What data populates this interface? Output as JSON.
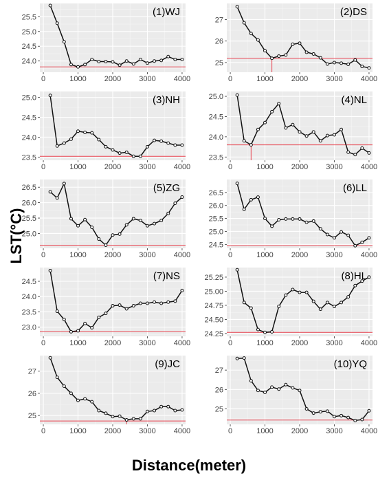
{
  "axis_label_y": "LST(°C)",
  "axis_label_x": "Distance(meter)",
  "chart_data": [
    {
      "type": "line",
      "title": "(1)WJ",
      "x": [
        200,
        400,
        600,
        800,
        1000,
        1200,
        1400,
        1600,
        1800,
        2000,
        2200,
        2400,
        2600,
        2800,
        3000,
        3200,
        3400,
        3600,
        3800,
        4000
      ],
      "values": [
        25.88,
        25.28,
        24.65,
        23.88,
        23.8,
        23.88,
        24.05,
        23.98,
        23.98,
        23.97,
        23.86,
        24.0,
        23.9,
        24.05,
        23.93,
        24.0,
        24.02,
        24.15,
        24.05,
        24.05
      ],
      "ylim": [
        23.62,
        25.95
      ],
      "yticks": [
        24.0,
        24.5,
        25.0,
        25.5
      ],
      "xticks": [
        0,
        1000,
        2000,
        3000,
        4000
      ],
      "xlim": [
        -100,
        4100
      ],
      "ref_y": 23.8,
      "ref_x": null
    },
    {
      "type": "line",
      "title": "(2)DS",
      "x": [
        200,
        400,
        600,
        800,
        1000,
        1200,
        1400,
        1600,
        1800,
        2000,
        2200,
        2400,
        2600,
        2800,
        3000,
        3200,
        3400,
        3600,
        3800,
        4000
      ],
      "values": [
        27.6,
        26.85,
        26.35,
        26.05,
        25.55,
        25.2,
        25.3,
        25.35,
        25.85,
        25.9,
        25.48,
        25.4,
        25.22,
        24.93,
        25.0,
        24.97,
        24.92,
        25.12,
        24.82,
        24.75
      ],
      "ylim": [
        24.55,
        27.75
      ],
      "yticks": [
        25,
        26,
        27
      ],
      "xticks": [
        0,
        1000,
        2000,
        3000,
        4000
      ],
      "xlim": [
        -100,
        4100
      ],
      "ref_y": 25.2,
      "ref_x": 1200
    },
    {
      "type": "line",
      "title": "(3)NH",
      "x": [
        200,
        400,
        600,
        800,
        1000,
        1200,
        1400,
        1600,
        1800,
        2000,
        2200,
        2400,
        2600,
        2800,
        3000,
        3200,
        3400,
        3600,
        3800,
        4000
      ],
      "values": [
        25.05,
        23.78,
        23.85,
        23.95,
        24.15,
        24.12,
        24.11,
        23.94,
        23.76,
        23.68,
        23.6,
        23.62,
        23.52,
        23.52,
        23.76,
        23.92,
        23.9,
        23.85,
        23.8,
        23.8
      ],
      "ylim": [
        23.42,
        25.15
      ],
      "yticks": [
        23.5,
        24.0,
        24.5,
        25.0
      ],
      "xticks": [
        0,
        1000,
        2000,
        3000,
        4000
      ],
      "xlim": [
        -100,
        4100
      ],
      "ref_y": 23.52,
      "ref_x": null
    },
    {
      "type": "line",
      "title": "(4)NL",
      "x": [
        200,
        400,
        600,
        800,
        1000,
        1200,
        1400,
        1600,
        1800,
        2000,
        2200,
        2400,
        2600,
        2800,
        3000,
        3200,
        3400,
        3600,
        3800,
        4000
      ],
      "values": [
        25.03,
        23.9,
        23.8,
        24.18,
        24.35,
        24.62,
        24.82,
        24.22,
        24.3,
        24.12,
        24.02,
        24.12,
        23.9,
        24.03,
        24.05,
        24.18,
        23.62,
        23.56,
        23.72,
        23.6
      ],
      "ylim": [
        23.42,
        25.12
      ],
      "yticks": [
        23.5,
        24.0,
        24.5,
        25.0
      ],
      "xticks": [
        0,
        1000,
        2000,
        3000,
        4000
      ],
      "xlim": [
        -100,
        4100
      ],
      "ref_y": 23.8,
      "ref_x": 600
    },
    {
      "type": "line",
      "title": "(5)ZG",
      "x": [
        200,
        400,
        600,
        800,
        1000,
        1200,
        1400,
        1600,
        1800,
        2000,
        2200,
        2400,
        2600,
        2800,
        3000,
        3200,
        3400,
        3600,
        3800,
        4000
      ],
      "values": [
        26.35,
        26.15,
        26.62,
        25.48,
        25.25,
        25.45,
        25.2,
        24.82,
        24.62,
        24.95,
        24.98,
        25.28,
        25.48,
        25.42,
        25.25,
        25.32,
        25.42,
        25.65,
        25.98,
        26.18
      ],
      "ylim": [
        24.52,
        26.75
      ],
      "yticks": [
        25.0,
        25.5,
        26.0,
        26.5
      ],
      "xticks": [
        0,
        1000,
        2000,
        3000,
        4000
      ],
      "xlim": [
        -100,
        4100
      ],
      "ref_y": 24.62,
      "ref_x": null
    },
    {
      "type": "line",
      "title": "(6)LL",
      "x": [
        200,
        400,
        600,
        800,
        1000,
        1200,
        1400,
        1600,
        1800,
        2000,
        2200,
        2400,
        2600,
        2800,
        3000,
        3200,
        3400,
        3600,
        3800,
        4000
      ],
      "values": [
        26.85,
        25.85,
        26.22,
        26.32,
        25.5,
        25.2,
        25.45,
        25.48,
        25.48,
        25.48,
        25.35,
        25.4,
        25.1,
        24.88,
        24.75,
        24.98,
        24.85,
        24.45,
        24.58,
        24.75
      ],
      "ylim": [
        24.35,
        27.0
      ],
      "yticks": [
        24.5,
        25.0,
        25.5,
        26.0,
        26.5
      ],
      "xticks": [
        0,
        1000,
        2000,
        3000,
        4000
      ],
      "xlim": [
        -100,
        4100
      ],
      "ref_y": 24.45,
      "ref_x": null
    },
    {
      "type": "line",
      "title": "(7)NS",
      "x": [
        200,
        400,
        600,
        800,
        1000,
        1200,
        1400,
        1600,
        1800,
        2000,
        2200,
        2400,
        2600,
        2800,
        3000,
        3200,
        3400,
        3600,
        3800,
        4000
      ],
      "values": [
        24.85,
        23.52,
        23.25,
        22.85,
        22.88,
        23.12,
        22.98,
        23.32,
        23.45,
        23.7,
        23.72,
        23.6,
        23.7,
        23.78,
        23.78,
        23.82,
        23.78,
        23.82,
        23.85,
        24.2
      ],
      "ylim": [
        22.7,
        24.95
      ],
      "yticks": [
        23.0,
        23.5,
        24.0,
        24.5
      ],
      "xticks": [
        0,
        1000,
        2000,
        3000,
        4000
      ],
      "xlim": [
        -100,
        4100
      ],
      "ref_y": 22.85,
      "ref_x": null
    },
    {
      "type": "line",
      "title": "(8)HL",
      "x": [
        200,
        400,
        600,
        800,
        1000,
        1200,
        1400,
        1600,
        1800,
        2000,
        2200,
        2400,
        2600,
        2800,
        3000,
        3200,
        3400,
        3600,
        3800,
        4000
      ],
      "values": [
        25.38,
        24.8,
        24.7,
        24.32,
        24.27,
        24.28,
        24.73,
        24.93,
        25.03,
        24.98,
        24.98,
        24.82,
        24.68,
        24.8,
        24.73,
        24.8,
        24.9,
        25.1,
        25.18,
        25.25
      ],
      "ylim": [
        24.2,
        25.42
      ],
      "yticks": [
        24.25,
        24.5,
        24.75,
        25.0,
        25.25
      ],
      "xticks": [
        0,
        1000,
        2000,
        3000,
        4000
      ],
      "xlim": [
        -100,
        4100
      ],
      "ref_y": 24.27,
      "ref_x": null
    },
    {
      "type": "line",
      "title": "(9)JC",
      "x": [
        200,
        400,
        600,
        800,
        1000,
        1200,
        1400,
        1600,
        1800,
        2000,
        2200,
        2400,
        2600,
        2800,
        3000,
        3200,
        3400,
        3600,
        3800,
        4000
      ],
      "values": [
        27.6,
        26.72,
        26.32,
        26.0,
        25.68,
        25.75,
        25.62,
        25.22,
        25.1,
        24.95,
        24.97,
        24.8,
        24.85,
        24.85,
        25.18,
        25.22,
        25.4,
        25.4,
        25.22,
        25.25
      ],
      "ylim": [
        24.6,
        27.7
      ],
      "yticks": [
        25,
        26,
        27
      ],
      "xticks": [
        0,
        1000,
        2000,
        3000,
        4000
      ],
      "xlim": [
        -100,
        4100
      ],
      "ref_y": 24.75,
      "ref_x": 2400
    },
    {
      "type": "line",
      "title": "(10)YQ",
      "x": [
        200,
        400,
        600,
        800,
        1000,
        1200,
        1400,
        1600,
        1800,
        2000,
        2200,
        2400,
        2600,
        2800,
        3000,
        3200,
        3400,
        3600,
        3800,
        4000
      ],
      "values": [
        27.6,
        27.62,
        26.45,
        25.95,
        25.85,
        26.12,
        26.02,
        26.25,
        26.08,
        25.95,
        25.0,
        24.78,
        24.85,
        24.88,
        24.6,
        24.65,
        24.55,
        24.4,
        24.45,
        24.9
      ],
      "ylim": [
        24.2,
        27.75
      ],
      "yticks": [
        25,
        26,
        27
      ],
      "xticks": [
        0,
        1000,
        2000,
        3000,
        4000
      ],
      "xlim": [
        -100,
        4100
      ],
      "ref_y": 24.42,
      "ref_x": null
    }
  ]
}
